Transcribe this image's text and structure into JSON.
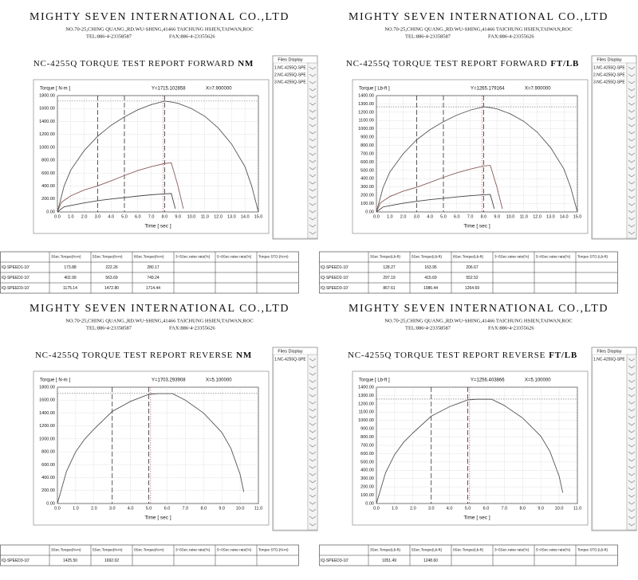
{
  "panels": [
    {
      "header": {
        "company": "MIGHTY SEVEN INTERNATIONAL CO.,LTD",
        "address": "NO.70-25,CHING QUANG.,RD.WU-SHING,41466 TAICHUNG HSIEN,TAIWAN,ROC",
        "tel": "TEL:886-4-23358587",
        "fax": "FAX:886-4-23355626"
      },
      "files": {
        "title": "Files Display",
        "items": [
          "1.NC-4255Q-SPE",
          "2.NC-4255Q-SPE",
          "3.NC-4255Q-SPE"
        ]
      },
      "table": {
        "columns": [
          "3Sec.Torque(N-m)",
          "5Sec.Torque(N-m)",
          "8Sec.Torque(N-m)",
          "3~5Sec.raise rate(%)",
          "5~8Sec.raise rate(%)",
          "Torque STD.(N-m)"
        ],
        "rows": [
          [
            "IQ-SPEED1-10'",
            "173.88",
            "222.26",
            "280.17"
          ],
          [
            "IQ-SPEED2-10'",
            "402.99",
            "563.69",
            "749.24"
          ],
          [
            "IQ-SPEED3-10'",
            "1175.14",
            "1472.80",
            "1714.44"
          ]
        ]
      }
    },
    {
      "header": {
        "company": "MIGHTY SEVEN INTERNATIONAL CO.,LTD",
        "address": "NO.70-25,CHING QUANG.,RD.WU-SHING,41466 TAICHUNG HSIEN,TAIWAN,ROC",
        "tel": "TEL:886-4-23358587",
        "fax": "FAX:886-4-23355626"
      },
      "files": {
        "title": "Files Display",
        "items": [
          "1.NC-4255Q-SPE",
          "2.NC-4255Q-SPE",
          "3.NC-4255Q-SPE"
        ]
      },
      "table": {
        "columns": [
          "3Sec.Torque(Lb-ft)",
          "5Sec.Torque(Lb-ft)",
          "8Sec.Torque(Lb-ft)",
          "3~5Sec.raise rate(%)",
          "5~8Sec.raise rate(%)",
          "Torque STD.(Lb-ft)"
        ],
        "rows": [
          [
            "IQ-SPEED1-10'",
            "128.27",
            "163.95",
            "206.67"
          ],
          [
            "IQ-SPEED2-10'",
            "297.19",
            "415.69",
            "552.52"
          ],
          [
            "IQ-SPEED3-10'",
            "867.61",
            "1086.44",
            "1264.69"
          ]
        ]
      }
    },
    {
      "header": {
        "company": "MIGHTY SEVEN INTERNATIONAL CO.,LTD",
        "address": "NO.70-25,CHING QUANG.,RD.WU-SHING,41466 TAICHUNG HSIEN,TAIWAN,ROC",
        "tel": "TEL:886-4-23358587",
        "fax": "FAX:886-4-23355626"
      },
      "files": {
        "title": "Files Display",
        "items": [
          "1.NC-4255Q-SPE"
        ]
      },
      "table": {
        "columns": [
          "3Sec.Torque(N-m)",
          "5Sec.Torque(N-m)",
          "0Sec.Torque(N-m)",
          "3~5Sec.raise rate(%)",
          "5~0Sec.raise rate(%)",
          "Torque STD.(N-m)"
        ],
        "rows": [
          [
            "IQ-SPEED3-10'",
            "1425.50",
            "1692.02"
          ]
        ]
      }
    },
    {
      "header": {
        "company": "MIGHTY SEVEN INTERNATIONAL CO.,LTD",
        "address": "NO.70-25,CHING QUANG.,RD.WU-SHING,41466 TAICHUNG HSIEN,TAIWAN,ROC",
        "tel": "TEL:886-4-23358587",
        "fax": "FAX:886-4-23355626"
      },
      "files": {
        "title": "Files Display",
        "items": [
          "1.NC-4255Q-SPE"
        ]
      },
      "table": {
        "columns": [
          "3Sec.Torque(Lb-ft)",
          "5Sec.Torque(Lb-ft)",
          "0Sec.Torque(Lb-ft)",
          "3~5Sec.raise rate(%)",
          "5~0Sec.raise rate(%)",
          "Torque STD.(Lb-ft)"
        ],
        "rows": [
          [
            "IQ-SPEED3-10'",
            "1051.49",
            "1248.60"
          ]
        ]
      }
    }
  ],
  "chart_data": [
    {
      "type": "line",
      "title": "NC-4255Q TORQUE TEST REPORT FORWARD",
      "title_unit": "NM",
      "y_axis_label": "Torque [ N-m ]",
      "x_axis_label": "Time [ sec ]",
      "cursor_y_label": "Y=1715.102858",
      "cursor_x_label": "X=7.900000",
      "cursor": {
        "x": 7.9,
        "y": 1715.102858
      },
      "markers": [
        3,
        5,
        8
      ],
      "grid": true,
      "xlim": [
        0,
        15
      ],
      "ylim": [
        0,
        1800
      ],
      "xticks": [
        {
          "value": 0,
          "label": "0.0"
        },
        {
          "value": 1,
          "label": "1.0"
        },
        {
          "value": 2,
          "label": "2.0"
        },
        {
          "value": 3,
          "label": "3.0"
        },
        {
          "value": 4,
          "label": "4.0"
        },
        {
          "value": 5,
          "label": "5.0"
        },
        {
          "value": 6,
          "label": "6.0"
        },
        {
          "value": 7,
          "label": "7.0"
        },
        {
          "value": 8,
          "label": "8.0"
        },
        {
          "value": 9,
          "label": "9.0"
        },
        {
          "value": 10,
          "label": "10.0"
        },
        {
          "value": 11,
          "label": "11.0"
        },
        {
          "value": 12,
          "label": "12.0"
        },
        {
          "value": 13,
          "label": "13.0"
        },
        {
          "value": 14,
          "label": "14.0"
        },
        {
          "value": 15,
          "label": "15.0"
        }
      ],
      "yticks": [
        {
          "value": 0,
          "label": "0.00"
        },
        {
          "value": 200,
          "label": "200.00"
        },
        {
          "value": 400,
          "label": "400.00"
        },
        {
          "value": 600,
          "label": "600.00"
        },
        {
          "value": 800,
          "label": "800.00"
        },
        {
          "value": 1000,
          "label": "1000.00"
        },
        {
          "value": 1200,
          "label": "1200.00"
        },
        {
          "value": 1400,
          "label": "1400.00"
        },
        {
          "value": 1600,
          "label": "1600.00"
        },
        {
          "value": 1800,
          "label": "1800.00"
        }
      ],
      "series": [
        {
          "color": "#555555",
          "x": [
            0,
            0.5,
            1,
            2,
            3,
            4,
            5,
            6,
            7,
            8,
            8.5,
            9,
            10,
            11,
            12,
            13,
            14,
            14.5,
            15
          ],
          "values": [
            0,
            400,
            650,
            950,
            1170,
            1340,
            1470,
            1580,
            1660,
            1714,
            1700,
            1680,
            1600,
            1480,
            1300,
            1050,
            700,
            400,
            0
          ]
        },
        {
          "color": "#8a5a5a",
          "x": [
            0,
            0.3,
            1,
            2,
            3,
            4,
            5,
            6,
            7,
            8,
            8.5,
            9,
            9.4
          ],
          "values": [
            0,
            150,
            250,
            340,
            403,
            480,
            564,
            640,
            700,
            749,
            760,
            400,
            50
          ]
        },
        {
          "color": "#444444",
          "x": [
            0,
            0.5,
            1,
            2,
            3,
            4,
            5,
            6,
            7,
            8,
            8.5,
            8.8
          ],
          "values": [
            0,
            80,
            100,
            140,
            174,
            200,
            222,
            245,
            265,
            280,
            285,
            50
          ]
        }
      ]
    },
    {
      "type": "line",
      "title": "NC-4255Q TORQUE TEST REPORT FORWARD",
      "title_unit": "FT/LB",
      "y_axis_label": "Torque [ Lb-ft ]",
      "x_axis_label": "Time [ sec ]",
      "cursor_y_label": "Y=1265.179164",
      "cursor_x_label": "X=7.900000",
      "cursor": {
        "x": 7.9,
        "y": 1265.179164
      },
      "markers": [
        3,
        5,
        8
      ],
      "grid": true,
      "xlim": [
        0,
        15
      ],
      "ylim": [
        0,
        1400
      ],
      "xticks": [
        {
          "value": 0,
          "label": "0.0"
        },
        {
          "value": 1,
          "label": "1.0"
        },
        {
          "value": 2,
          "label": "2.0"
        },
        {
          "value": 3,
          "label": "3.0"
        },
        {
          "value": 4,
          "label": "4.0"
        },
        {
          "value": 5,
          "label": "5.0"
        },
        {
          "value": 6,
          "label": "6.0"
        },
        {
          "value": 7,
          "label": "7.0"
        },
        {
          "value": 8,
          "label": "8.0"
        },
        {
          "value": 9,
          "label": "9.0"
        },
        {
          "value": 10,
          "label": "10.0"
        },
        {
          "value": 11,
          "label": "11.0"
        },
        {
          "value": 12,
          "label": "12.0"
        },
        {
          "value": 13,
          "label": "13.0"
        },
        {
          "value": 14,
          "label": "14.0"
        },
        {
          "value": 15,
          "label": "15.0"
        }
      ],
      "yticks": [
        {
          "value": 0,
          "label": "0.00"
        },
        {
          "value": 100,
          "label": "100.00"
        },
        {
          "value": 200,
          "label": "200.00"
        },
        {
          "value": 300,
          "label": "300.00"
        },
        {
          "value": 400,
          "label": "400.00"
        },
        {
          "value": 500,
          "label": "500.00"
        },
        {
          "value": 600,
          "label": "600.00"
        },
        {
          "value": 700,
          "label": "700.00"
        },
        {
          "value": 800,
          "label": "800.00"
        },
        {
          "value": 900,
          "label": "900.00"
        },
        {
          "value": 1000,
          "label": "1000.00"
        },
        {
          "value": 1100,
          "label": "1100.00"
        },
        {
          "value": 1200,
          "label": "1200.00"
        },
        {
          "value": 1300,
          "label": "1300.00"
        },
        {
          "value": 1400,
          "label": "1400.00"
        }
      ],
      "series": [
        {
          "color": "#555555",
          "x": [
            0,
            0.5,
            1,
            2,
            3,
            4,
            5,
            6,
            7,
            8,
            8.5,
            9,
            10,
            11,
            12,
            13,
            14,
            14.5,
            15
          ],
          "values": [
            0,
            295,
            480,
            700,
            868,
            990,
            1086,
            1165,
            1225,
            1265,
            1255,
            1240,
            1180,
            1090,
            960,
            775,
            515,
            295,
            0
          ]
        },
        {
          "color": "#8a5a5a",
          "x": [
            0,
            0.3,
            1,
            2,
            3,
            4,
            5,
            6,
            7,
            8,
            8.5,
            9,
            9.4
          ],
          "values": [
            0,
            110,
            185,
            250,
            297,
            355,
            416,
            470,
            515,
            553,
            560,
            295,
            37
          ]
        },
        {
          "color": "#444444",
          "x": [
            0,
            0.5,
            1,
            2,
            3,
            4,
            5,
            6,
            7,
            8,
            8.5,
            8.8
          ],
          "values": [
            0,
            60,
            75,
            105,
            128,
            148,
            164,
            180,
            195,
            207,
            210,
            37
          ]
        }
      ]
    },
    {
      "type": "line",
      "title": "NC-4255Q TORQUE TEST REPORT REVERSE",
      "title_unit": "NM",
      "y_axis_label": "Torque [ N-m ]",
      "x_axis_label": "Time [ sec ]",
      "cursor_y_label": "Y=1703.293908",
      "cursor_x_label": "X=5.100000",
      "cursor": {
        "x": 5.1,
        "y": 1703.293908
      },
      "markers": [
        3,
        5
      ],
      "grid": true,
      "xlim": [
        0,
        11
      ],
      "ylim": [
        0,
        1800
      ],
      "xticks": [
        {
          "value": 0,
          "label": "0.0"
        },
        {
          "value": 1,
          "label": "1.0"
        },
        {
          "value": 2,
          "label": "2.0"
        },
        {
          "value": 3,
          "label": "3.0"
        },
        {
          "value": 4,
          "label": "4.0"
        },
        {
          "value": 5,
          "label": "5.0"
        },
        {
          "value": 6,
          "label": "6.0"
        },
        {
          "value": 7,
          "label": "7.0"
        },
        {
          "value": 8,
          "label": "8.0"
        },
        {
          "value": 9,
          "label": "9.0"
        },
        {
          "value": 10,
          "label": "10.0"
        },
        {
          "value": 11,
          "label": "11.0"
        }
      ],
      "yticks": [
        {
          "value": 0,
          "label": "0.00"
        },
        {
          "value": 200,
          "label": "200.00"
        },
        {
          "value": 400,
          "label": "400.00"
        },
        {
          "value": 600,
          "label": "600.00"
        },
        {
          "value": 800,
          "label": "800.00"
        },
        {
          "value": 1000,
          "label": "1000.00"
        },
        {
          "value": 1200,
          "label": "1200.00"
        },
        {
          "value": 1400,
          "label": "1400.00"
        },
        {
          "value": 1600,
          "label": "1600.00"
        },
        {
          "value": 1800,
          "label": "1800.00"
        }
      ],
      "series": [
        {
          "color": "#555555",
          "x": [
            0,
            0.5,
            1,
            1.5,
            2,
            3,
            4,
            5,
            5.1,
            5.5,
            6,
            6.3,
            7,
            8,
            9,
            9.5,
            10,
            10.2
          ],
          "values": [
            0,
            500,
            800,
            1000,
            1150,
            1425,
            1580,
            1690,
            1692,
            1700,
            1700,
            1700,
            1600,
            1400,
            1100,
            850,
            450,
            180
          ]
        }
      ]
    },
    {
      "type": "line",
      "title": "NC-4255Q TORQUE TEST REPORT REVERSE",
      "title_unit": "FT/LB",
      "y_axis_label": "Torque [ Lb-ft ]",
      "x_axis_label": "Time [ sec ]",
      "cursor_y_label": "Y=1256.403866",
      "cursor_x_label": "X=5.100000",
      "cursor": {
        "x": 5.1,
        "y": 1256.403866
      },
      "markers": [
        3,
        5
      ],
      "grid": true,
      "xlim": [
        0,
        11
      ],
      "ylim": [
        0,
        1400
      ],
      "xticks": [
        {
          "value": 0,
          "label": "0.0"
        },
        {
          "value": 1,
          "label": "1.0"
        },
        {
          "value": 2,
          "label": "2.0"
        },
        {
          "value": 3,
          "label": "3.0"
        },
        {
          "value": 4,
          "label": "4.0"
        },
        {
          "value": 5,
          "label": "5.0"
        },
        {
          "value": 6,
          "label": "6.0"
        },
        {
          "value": 7,
          "label": "7.0"
        },
        {
          "value": 8,
          "label": "8.0"
        },
        {
          "value": 9,
          "label": "9.0"
        },
        {
          "value": 10,
          "label": "10.0"
        },
        {
          "value": 11,
          "label": "11.0"
        }
      ],
      "yticks": [
        {
          "value": 0,
          "label": "0.00"
        },
        {
          "value": 100,
          "label": "100.00"
        },
        {
          "value": 200,
          "label": "200.00"
        },
        {
          "value": 300,
          "label": "300.00"
        },
        {
          "value": 400,
          "label": "400.00"
        },
        {
          "value": 500,
          "label": "500.00"
        },
        {
          "value": 600,
          "label": "600.00"
        },
        {
          "value": 700,
          "label": "700.00"
        },
        {
          "value": 800,
          "label": "800.00"
        },
        {
          "value": 900,
          "label": "900.00"
        },
        {
          "value": 1000,
          "label": "1000.00"
        },
        {
          "value": 1100,
          "label": "1100.00"
        },
        {
          "value": 1200,
          "label": "1200.00"
        },
        {
          "value": 1300,
          "label": "1300.00"
        },
        {
          "value": 1400,
          "label": "1400.00"
        }
      ],
      "series": [
        {
          "color": "#555555",
          "x": [
            0,
            0.5,
            1,
            1.5,
            2,
            3,
            4,
            5,
            5.1,
            5.5,
            6,
            6.3,
            7,
            8,
            9,
            9.5,
            10,
            10.2
          ],
          "values": [
            0,
            370,
            590,
            740,
            850,
            1051,
            1165,
            1247,
            1249,
            1255,
            1255,
            1255,
            1180,
            1030,
            810,
            625,
            330,
            130
          ]
        }
      ]
    }
  ]
}
